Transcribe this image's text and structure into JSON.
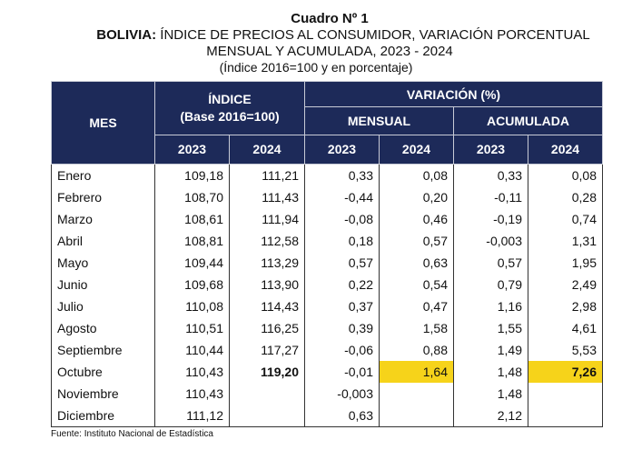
{
  "header": {
    "cuadro": "Cuadro Nº 1",
    "country": "BOLIVIA:",
    "title_rest": "ÍNDICE DE PRECIOS AL CONSUMIDOR, VARIACIÓN PORCENTUAL",
    "subtitle": "MENSUAL Y ACUMULADA, 2023 - 2024",
    "note": "(Índice 2016=100 y en porcentaje)"
  },
  "columns": {
    "mes": "MES",
    "indice_line1": "ÍNDICE",
    "indice_line2": "(Base 2016=100)",
    "variacion": "VARIACIÓN (%)",
    "mensual": "MENSUAL",
    "acumulada": "ACUMULADA",
    "years": [
      "2023",
      "2024",
      "2023",
      "2024",
      "2023",
      "2024"
    ]
  },
  "rows": [
    {
      "mes": "Enero",
      "i2023": "109,18",
      "i2024": "111,21",
      "m2023": "0,33",
      "m2024": "0,08",
      "a2023": "0,33",
      "a2024": "0,08"
    },
    {
      "mes": "Febrero",
      "i2023": "108,70",
      "i2024": "111,43",
      "m2023": "-0,44",
      "m2024": "0,20",
      "a2023": "-0,11",
      "a2024": "0,28"
    },
    {
      "mes": "Marzo",
      "i2023": "108,61",
      "i2024": "111,94",
      "m2023": "-0,08",
      "m2024": "0,46",
      "a2023": "-0,19",
      "a2024": "0,74"
    },
    {
      "mes": "Abril",
      "i2023": "108,81",
      "i2024": "112,58",
      "m2023": "0,18",
      "m2024": "0,57",
      "a2023": "-0,003",
      "a2024": "1,31"
    },
    {
      "mes": "Mayo",
      "i2023": "109,44",
      "i2024": "113,29",
      "m2023": "0,57",
      "m2024": "0,63",
      "a2023": "0,57",
      "a2024": "1,95"
    },
    {
      "mes": "Junio",
      "i2023": "109,68",
      "i2024": "113,90",
      "m2023": "0,22",
      "m2024": "0,54",
      "a2023": "0,79",
      "a2024": "2,49"
    },
    {
      "mes": "Julio",
      "i2023": "110,08",
      "i2024": "114,43",
      "m2023": "0,37",
      "m2024": "0,47",
      "a2023": "1,16",
      "a2024": "2,98"
    },
    {
      "mes": "Agosto",
      "i2023": "110,51",
      "i2024": "116,25",
      "m2023": "0,39",
      "m2024": "1,58",
      "a2023": "1,55",
      "a2024": "4,61"
    },
    {
      "mes": "Septiembre",
      "i2023": "110,44",
      "i2024": "117,27",
      "m2023": "-0,06",
      "m2024": "0,88",
      "a2023": "1,49",
      "a2024": "5,53"
    },
    {
      "mes": "Octubre",
      "i2023": "110,43",
      "i2024": "119,20",
      "m2023": "-0,01",
      "m2024": "1,64",
      "a2023": "1,48",
      "a2024": "7,26"
    },
    {
      "mes": "Noviembre",
      "i2023": "110,43",
      "i2024": "",
      "m2023": "-0,003",
      "m2024": "",
      "a2023": "1,48",
      "a2024": ""
    },
    {
      "mes": "Diciembre",
      "i2023": "111,12",
      "i2024": "",
      "m2023": "0,63",
      "m2024": "",
      "a2023": "2,12",
      "a2024": ""
    }
  ],
  "footer": {
    "fuente": "Fuente: Instituto Nacional de Estadística"
  },
  "colors": {
    "header_bg": "#1d2a59",
    "highlight": "#f6d31a"
  }
}
